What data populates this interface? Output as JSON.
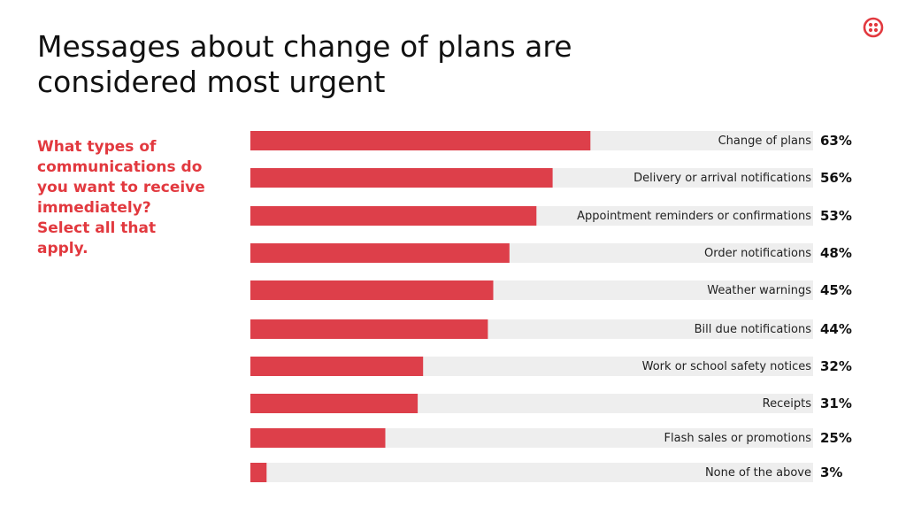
{
  "title": "Messages about change of plans are considered most urgent",
  "question": "What types of communications do you want to receive immediately? Select all that apply.",
  "logo": {
    "icon": "twilio-logo-icon",
    "color": "#e2393f"
  },
  "colors": {
    "bar": "#dd3f4a",
    "track": "#eeeeee"
  },
  "chart_data": {
    "type": "bar",
    "orientation": "horizontal",
    "categories": [
      "Change of plans",
      "Delivery or arrival notifications",
      "Appointment reminders or confirmations",
      "Order notifications",
      "Weather warnings",
      "Bill due notifications",
      "Work or school safety notices",
      "Receipts",
      "Flash sales or promotions",
      "None of the above"
    ],
    "values": [
      63,
      56,
      53,
      48,
      45,
      44,
      32,
      31,
      25,
      3
    ],
    "value_labels": [
      "63%",
      "56%",
      "53%",
      "48%",
      "45%",
      "44%",
      "32%",
      "31%",
      "25%",
      "3%"
    ],
    "xlim": [
      0,
      100
    ],
    "grid": false
  }
}
